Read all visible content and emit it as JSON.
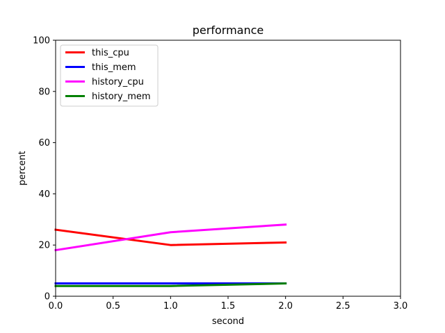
{
  "chart_data": {
    "type": "line",
    "title": "performance",
    "xlabel": "second",
    "ylabel": "percent",
    "xlim": [
      0,
      3
    ],
    "ylim": [
      0,
      100
    ],
    "xticks": [
      0,
      0.5,
      1,
      1.5,
      2,
      2.5,
      3
    ],
    "xtick_labels": [
      "0.0",
      "0.5",
      "1.0",
      "1.5",
      "2.0",
      "2.5",
      "3.0"
    ],
    "yticks": [
      0,
      20,
      40,
      60,
      80,
      100
    ],
    "ytick_labels": [
      "0",
      "20",
      "40",
      "60",
      "80",
      "100"
    ],
    "grid": false,
    "legend_position": "top-left",
    "x": [
      0,
      1,
      2
    ],
    "series": [
      {
        "name": "this_cpu",
        "color": "#ff0000",
        "values": [
          26,
          20,
          21
        ]
      },
      {
        "name": "this_mem",
        "color": "#0000ff",
        "values": [
          5,
          5,
          5
        ]
      },
      {
        "name": "history_cpu",
        "color": "#ff00ff",
        "values": [
          18,
          25,
          28
        ]
      },
      {
        "name": "history_mem",
        "color": "#008000",
        "values": [
          4,
          4,
          5
        ]
      }
    ]
  }
}
